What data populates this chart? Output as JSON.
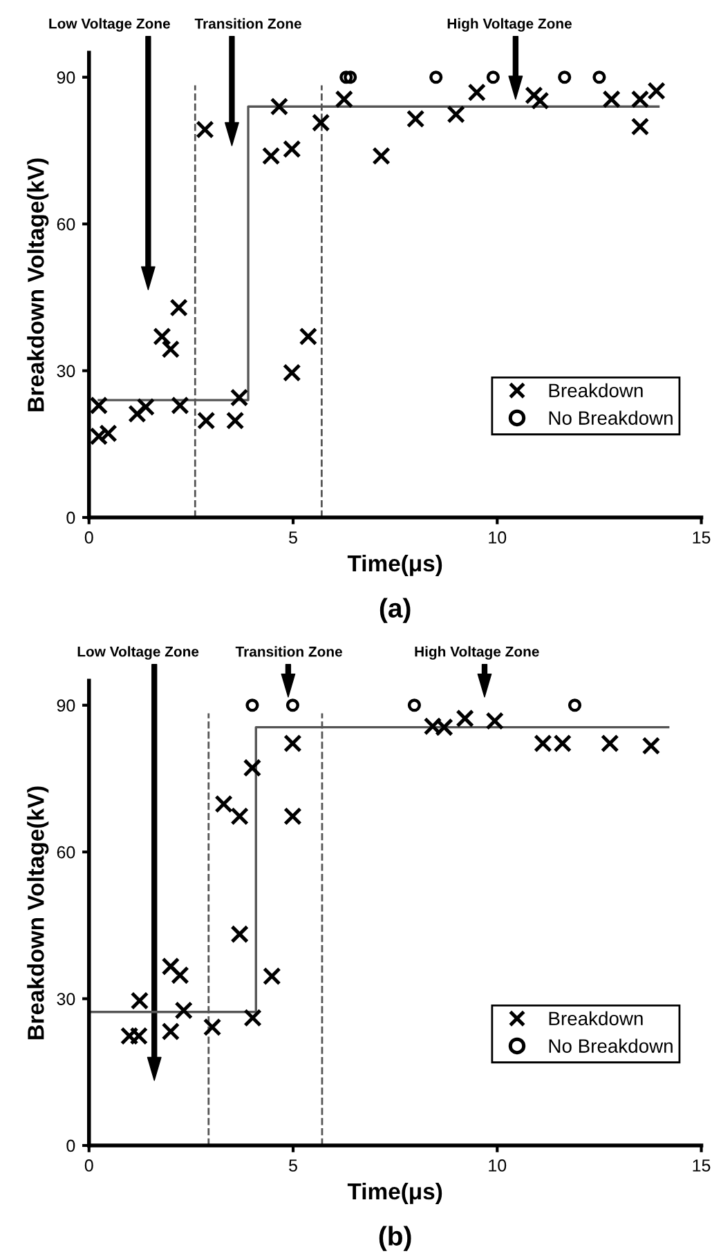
{
  "chart_data": [
    {
      "type": "scatter",
      "title": "(a)",
      "xlabel": "Time(μs)",
      "ylabel": "Breakdown Voltage(kV)",
      "xlim": [
        0,
        15
      ],
      "ylim": [
        0,
        95
      ],
      "xticks": [
        0,
        5,
        10,
        15
      ],
      "yticks": [
        0,
        30,
        60,
        90
      ],
      "grid": false,
      "legend": "right",
      "series": [
        {
          "name": "Breakdown",
          "marker": "cross",
          "color": "#000000",
          "x": [
            0.24,
            0.24,
            0.47,
            1.18,
            1.39,
            1.79,
            2.0,
            2.2,
            2.23,
            2.84,
            2.87,
            3.58,
            3.68,
            4.46,
            4.66,
            4.97,
            4.97,
            5.37,
            5.68,
            6.25,
            7.16,
            8.0,
            8.99,
            9.5,
            10.9,
            11.05,
            12.8,
            13.5,
            13.5,
            13.9
          ],
          "values": [
            22.9,
            16.6,
            17.2,
            21.2,
            22.6,
            37,
            34.4,
            42.9,
            22.9,
            79.3,
            19.8,
            19.8,
            24.5,
            73.9,
            84,
            75.3,
            29.6,
            37,
            80.7,
            85.5,
            73.9,
            81.5,
            82.4,
            86.9,
            86.3,
            85.2,
            85.5,
            85.5,
            79.9,
            87.2
          ]
        },
        {
          "name": "No Breakdown",
          "marker": "circle",
          "color": "#000000",
          "x": [
            6.3,
            6.4,
            8.5,
            9.9,
            11.65,
            12.5
          ],
          "values": [
            90,
            90,
            90,
            90,
            90,
            90
          ]
        },
        {
          "type": "step",
          "color": "#555555",
          "x": [
            0.24,
            3.9,
            13.95
          ],
          "values": [
            24,
            84,
            84
          ]
        }
      ],
      "ref_lines": [
        {
          "axis": "x",
          "value": 2.6,
          "line_style": "dashed",
          "color": "#555555"
        },
        {
          "axis": "x",
          "value": 5.7,
          "line_style": "dashed",
          "color": "#555555"
        }
      ],
      "annotations": [
        "Low Voltage Zone",
        "Transition Zone",
        "High Voltage Zone"
      ]
    },
    {
      "type": "scatter",
      "title": "(b)",
      "xlabel": "Time(μs)",
      "ylabel": "Breakdown Voltage(kV)",
      "xlim": [
        0,
        15
      ],
      "ylim": [
        0,
        95
      ],
      "xticks": [
        0,
        5,
        10,
        15
      ],
      "yticks": [
        0,
        30,
        60,
        90
      ],
      "grid": false,
      "legend": "right",
      "series": [
        {
          "name": "Breakdown",
          "marker": "cross",
          "color": "#000000",
          "x": [
            0.99,
            1.22,
            1.24,
            2.0,
            2.32,
            2.0,
            2.23,
            3.02,
            3.3,
            3.69,
            4.0,
            3.69,
            4.01,
            4.48,
            4.99,
            4.99,
            8.42,
            8.7,
            9.21,
            9.94,
            11.12,
            11.6,
            12.76,
            13.77
          ],
          "values": [
            22.4,
            22.4,
            29.6,
            23.3,
            27.6,
            36.6,
            34.8,
            24.2,
            69.8,
            67.3,
            77.2,
            43.2,
            26.1,
            34.6,
            82.2,
            67.3,
            85.7,
            85.5,
            87.3,
            86.8,
            82.2,
            82.2,
            82.2,
            81.7
          ]
        },
        {
          "name": "No Breakdown",
          "marker": "circle",
          "color": "#000000",
          "x": [
            4.0,
            4.99,
            7.97,
            11.9
          ],
          "values": [
            90,
            90,
            90,
            90
          ]
        },
        {
          "type": "step",
          "color": "#555555",
          "x": [
            0,
            4.09,
            14.19
          ],
          "values": [
            27.3,
            85.5,
            85.5
          ]
        }
      ],
      "ref_lines": [
        {
          "axis": "x",
          "value": 2.93,
          "line_style": "dashed",
          "color": "#555555"
        },
        {
          "axis": "x",
          "value": 5.71,
          "line_style": "dashed",
          "color": "#555555"
        }
      ],
      "annotations": [
        "Low Voltage Zone",
        "Transition Zone",
        "High Voltage Zone"
      ]
    }
  ]
}
